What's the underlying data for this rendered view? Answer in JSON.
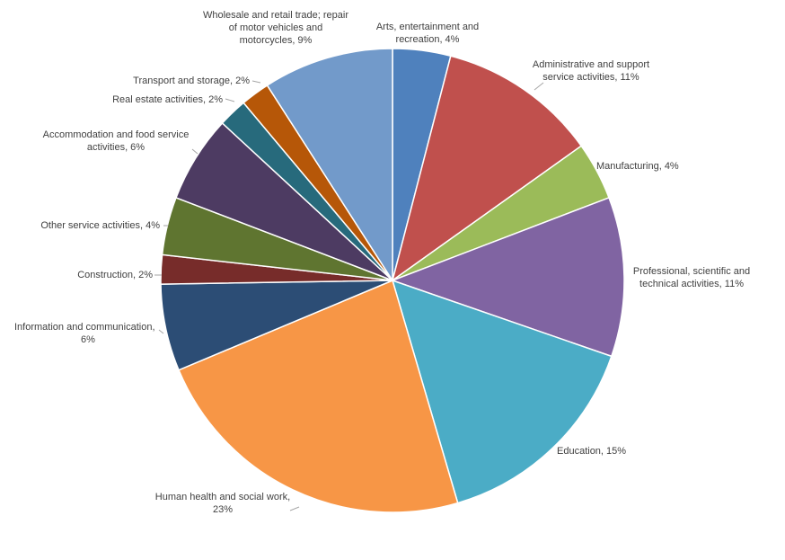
{
  "chart_data": {
    "type": "pie",
    "start_angle_deg": 0,
    "direction": "clockwise",
    "legend": "none",
    "slices": [
      {
        "name": "Arts, entertainment and recreation",
        "value": 4,
        "label": [
          "Arts, entertainment and",
          "recreation, 4%"
        ],
        "color": "#4F81BD",
        "label_anchor": "middle"
      },
      {
        "name": "Administrative and support service activities",
        "value": 11,
        "label": [
          "Administrative and support",
          "service activities, 11%"
        ],
        "color": "#C0504D",
        "label_anchor": "middle"
      },
      {
        "name": "Manufacturing",
        "value": 4,
        "label": [
          "Manufacturing, 4%"
        ],
        "color": "#9BBB59",
        "label_anchor": "start"
      },
      {
        "name": "Professional, scientific and technical activities",
        "value": 11,
        "label": [
          "Professional, scientific and",
          "technical activities, 11%"
        ],
        "color": "#8064A2",
        "label_anchor": "middle"
      },
      {
        "name": "Education",
        "value": 15,
        "label": [
          "Education, 15%"
        ],
        "color": "#4BACC6",
        "label_anchor": "start"
      },
      {
        "name": "Human health and social work",
        "value": 23,
        "label": [
          "Human health and social work,",
          "23%"
        ],
        "color": "#F79646",
        "label_anchor": "middle"
      },
      {
        "name": "Information and communication",
        "value": 6,
        "label": [
          "Information and communication,",
          "6%"
        ],
        "color": "#2C4D75",
        "label_anchor": "start_two"
      },
      {
        "name": "Construction",
        "value": 2,
        "label": [
          "Construction, 2%"
        ],
        "color": "#772C2A",
        "label_anchor": "end"
      },
      {
        "name": "Other service activities",
        "value": 4,
        "label": [
          "Other service activities, 4%"
        ],
        "color": "#5F7530",
        "label_anchor": "end"
      },
      {
        "name": "Accommodation and food service activities",
        "value": 6,
        "label": [
          "Accommodation and food service",
          "activities, 6%"
        ],
        "color": "#4D3B62",
        "label_anchor": "middle"
      },
      {
        "name": "Real estate activities",
        "value": 2,
        "label": [
          "Real estate activities, 2%"
        ],
        "color": "#276A7C",
        "label_anchor": "end"
      },
      {
        "name": "Transport and storage",
        "value": 2,
        "label": [
          "Transport and storage, 2%"
        ],
        "color": "#B65708",
        "label_anchor": "end"
      },
      {
        "name": "Wholesale and retail trade; repair of motor vehicles and motorcycles",
        "value": 9,
        "label": [
          "Wholesale and retail trade; repair",
          "of motor vehicles and",
          "motorcycles, 9%"
        ],
        "color": "#729ACA",
        "label_anchor": "middle"
      }
    ]
  }
}
